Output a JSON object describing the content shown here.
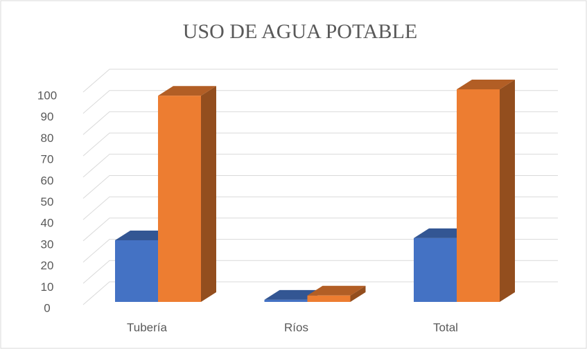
{
  "chart_data": {
    "type": "bar3d",
    "title": "USO DE AGUA POTABLE",
    "categories": [
      "Tubería",
      "Ríos",
      "Total"
    ],
    "series": [
      {
        "color": "#4472c4",
        "values": [
          29,
          1,
          30
        ]
      },
      {
        "color": "#ed7d31",
        "values": [
          97,
          3,
          100
        ]
      }
    ],
    "ylim": [
      0,
      100
    ],
    "yticks": [
      0,
      10,
      20,
      30,
      40,
      50,
      60,
      70,
      80,
      90,
      100
    ],
    "grid": true
  }
}
